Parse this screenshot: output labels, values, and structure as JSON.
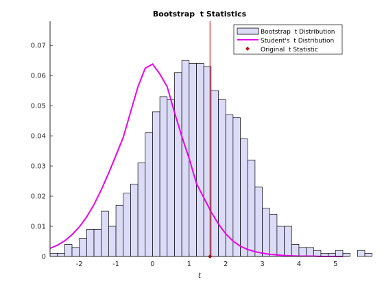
{
  "chart_data": {
    "type": "bar",
    "title": "Bootstrap  t Statistics",
    "xlabel": "t",
    "ylabel": "",
    "xlim": [
      -2.8,
      5.35
    ],
    "ylim": [
      0,
      0.078
    ],
    "x_ticks": [
      -2,
      -1,
      0,
      1,
      2,
      3,
      4,
      5
    ],
    "y_ticks": [
      0,
      0.01,
      0.02,
      0.03,
      0.04,
      0.05,
      0.06,
      0.07
    ],
    "x_tick_labels": [
      "-2",
      "-1",
      "0",
      "1",
      "2",
      "3",
      "4",
      "5"
    ],
    "y_tick_labels": [
      "0",
      "0.01",
      "0.02",
      "0.03",
      "0.04",
      "0.05",
      "0.06",
      "0.07"
    ],
    "grid": false,
    "legend_position": "top-right",
    "series": [
      {
        "name": "Bootstrap  t Distribution",
        "kind": "histogram",
        "color": "#dcdcf8",
        "edge_color": "#000000",
        "bin_start": -2.8,
        "bin_width": 0.2,
        "values": [
          0.001,
          0.001,
          0.004,
          0.003,
          0.006,
          0.009,
          0.009,
          0.015,
          0.01,
          0.017,
          0.021,
          0.024,
          0.031,
          0.041,
          0.048,
          0.053,
          0.052,
          0.061,
          0.065,
          0.064,
          0.064,
          0.063,
          0.055,
          0.052,
          0.047,
          0.046,
          0.039,
          0.032,
          0.023,
          0.016,
          0.014,
          0.01,
          0.01,
          0.004,
          0.003,
          0.003,
          0.002,
          0.001,
          0.001,
          0.002,
          0.001,
          0.0,
          0.002,
          0.001,
          0.0,
          0.0,
          0.001,
          0.0,
          0.0,
          0.002,
          0.0,
          0.001
        ]
      },
      {
        "name": "Student's  t Distribution",
        "kind": "curve",
        "color": "#e800e8",
        "x": [
          -2.8,
          -2.6,
          -2.4,
          -2.2,
          -2.0,
          -1.8,
          -1.6,
          -1.4,
          -1.2,
          -1.0,
          -0.8,
          -0.6,
          -0.4,
          -0.2,
          0.0,
          0.2,
          0.4,
          0.6,
          0.8,
          1.0,
          1.2,
          1.4,
          1.6,
          1.8,
          2.0,
          2.2,
          2.4,
          2.6,
          2.8,
          3.0,
          3.2,
          3.4,
          3.6,
          3.8,
          4.0,
          4.2,
          4.4,
          4.6,
          4.8,
          5.0,
          5.2
        ],
        "y": [
          0.0027,
          0.0037,
          0.0052,
          0.0072,
          0.0098,
          0.0131,
          0.0172,
          0.0221,
          0.0276,
          0.0335,
          0.0395,
          0.0479,
          0.0562,
          0.0624,
          0.0638,
          0.0605,
          0.0563,
          0.0478,
          0.0398,
          0.0325,
          0.0242,
          0.0195,
          0.0148,
          0.0108,
          0.0075,
          0.0051,
          0.0034,
          0.0023,
          0.0016,
          0.0011,
          0.0007,
          0.0005,
          0.0003,
          0.0002,
          0.0001,
          0.0001,
          0.0001,
          0.0,
          0.0,
          0.0,
          0.0
        ]
      },
      {
        "name": "Original  t Statistic",
        "kind": "marker-with-line",
        "color": "#cc0000",
        "x": 1.57,
        "y": 0.0
      }
    ]
  }
}
